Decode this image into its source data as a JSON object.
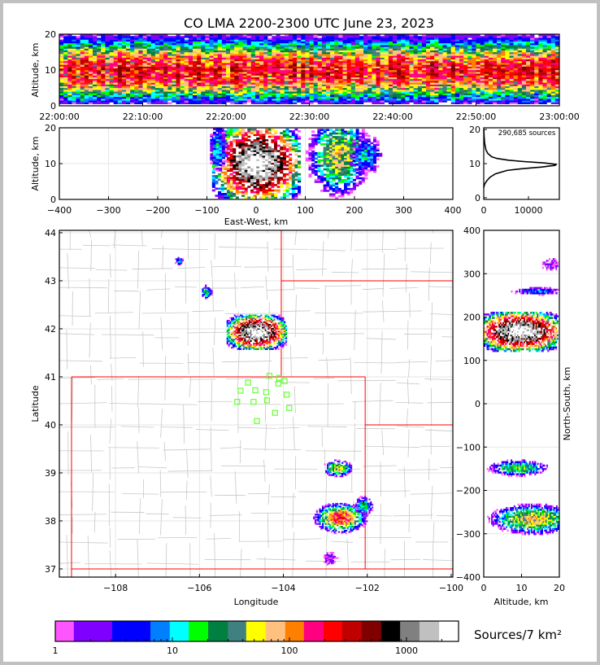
{
  "chart_data": {
    "type": "heatmap",
    "title": "CO LMA 2200-2300 UTC June 23, 2023",
    "source_count_label": "290,685 sources",
    "colorbar": {
      "label": "Sources/7 km²",
      "scale": "log",
      "tick_labels": [
        "1",
        "10",
        "100",
        "1000"
      ],
      "tick_values": [
        1,
        10,
        100,
        1000
      ],
      "bin_edges": [
        1,
        1.44,
        3.06,
        6.5,
        9.5,
        13.8,
        20.2,
        29.8,
        42.7,
        62.7,
        92,
        133,
        195,
        282,
        414,
        608,
        882,
        1290,
        1900,
        2780
      ],
      "colors": [
        "#ff55ff",
        "#8000ff",
        "#0000ff",
        "#0080ff",
        "#00ffff",
        "#00ff00",
        "#008040",
        "#408080",
        "#ffff00",
        "#ffc080",
        "#ff8000",
        "#ff0080",
        "#ff0000",
        "#c00000",
        "#800000",
        "#000000",
        "#808080",
        "#c0c0c0",
        "#ffffff"
      ]
    },
    "panels": {
      "time_height": {
        "ylabel": "Altitude, km",
        "ylim": [
          0,
          20
        ],
        "yticks": [
          0,
          10,
          20
        ],
        "xlim_minutes": [
          0,
          60
        ],
        "xtick_labels": [
          "22:00:00",
          "22:10:00",
          "22:20:00",
          "22:30:00",
          "22:40:00",
          "22:50:00",
          "23:00:00"
        ],
        "xtick_minutes": [
          0,
          10,
          20,
          30,
          40,
          50,
          60
        ],
        "profile": {
          "center_alt_km": 9.5,
          "spread_km": 3.0,
          "peak_density": 220
        }
      },
      "ew_height": {
        "xlabel": "East-West, km",
        "ylabel": "Altitude, km",
        "xlim": [
          -400,
          400
        ],
        "ylim": [
          0,
          20
        ],
        "xticks": [
          -400,
          -300,
          -200,
          -100,
          0,
          100,
          200,
          300,
          400
        ],
        "yticks": [
          0,
          10,
          20
        ],
        "clusters": [
          {
            "x": 0,
            "y": 10,
            "sx": 28,
            "sy": 3.5,
            "peak": 2600
          },
          {
            "x": -80,
            "y": 14,
            "sx": 8,
            "sy": 3,
            "peak": 12
          },
          {
            "x": 165,
            "y": 12,
            "sx": 22,
            "sy": 4,
            "peak": 60
          },
          {
            "x": 220,
            "y": 12,
            "sx": 15,
            "sy": 2.5,
            "peak": 10
          }
        ]
      },
      "altitude_histogram": {
        "xlim": [
          0,
          16900
        ],
        "ylim": [
          -0.5,
          20.5
        ],
        "xticks": [
          0,
          10000
        ],
        "yticks": [
          0,
          10,
          20
        ],
        "altitude_km": [
          3,
          4,
          5,
          6,
          7,
          8,
          8.5,
          9,
          9.5,
          9.8,
          10.2,
          10.6,
          11,
          11.5,
          12,
          13,
          14,
          16,
          18,
          20
        ],
        "counts": [
          0,
          200,
          700,
          1400,
          2600,
          5200,
          8500,
          13000,
          16000,
          16200,
          13500,
          9000,
          5500,
          3000,
          1800,
          900,
          500,
          200,
          80,
          20
        ]
      },
      "plan_view": {
        "xlabel": "Longitude",
        "ylabel": "Latitude",
        "xlim": [
          -109.34,
          -99.96
        ],
        "ylim": [
          36.83,
          44.05
        ],
        "xticks": [
          -108,
          -106,
          -104,
          -102,
          -100
        ],
        "yticks": [
          37,
          38,
          39,
          40,
          41,
          42,
          43,
          44
        ],
        "clusters": [
          {
            "x": -104.65,
            "y": 41.92,
            "sx": 0.22,
            "sy": 0.11,
            "peak": 2600
          },
          {
            "x": -102.65,
            "y": 38.05,
            "sx": 0.2,
            "sy": 0.1,
            "peak": 180
          },
          {
            "x": -102.72,
            "y": 39.08,
            "sx": 0.12,
            "sy": 0.06,
            "peak": 60
          },
          {
            "x": -102.1,
            "y": 38.3,
            "sx": 0.09,
            "sy": 0.08,
            "peak": 18
          },
          {
            "x": -105.85,
            "y": 42.75,
            "sx": 0.05,
            "sy": 0.06,
            "peak": 20
          },
          {
            "x": -106.5,
            "y": 43.4,
            "sx": 0.05,
            "sy": 0.04,
            "peak": 8
          },
          {
            "x": -102.9,
            "y": 37.2,
            "sx": 0.12,
            "sy": 0.1,
            "peak": 2
          }
        ],
        "stations": [
          [
            -104.33,
            41.02
          ],
          [
            -104.1,
            40.98
          ],
          [
            -103.97,
            40.91
          ],
          [
            -104.84,
            40.88
          ],
          [
            -104.12,
            40.86
          ],
          [
            -105.02,
            40.71
          ],
          [
            -104.67,
            40.72
          ],
          [
            -104.41,
            40.68
          ],
          [
            -103.92,
            40.63
          ],
          [
            -105.1,
            40.48
          ],
          [
            -104.71,
            40.48
          ],
          [
            -104.39,
            40.51
          ],
          [
            -103.86,
            40.35
          ],
          [
            -104.2,
            40.25
          ],
          [
            -104.63,
            40.08
          ]
        ]
      },
      "ns_height": {
        "xlabel": "Altitude, km",
        "ylabel": "North-South, km",
        "xlim": [
          0,
          20
        ],
        "ylim": [
          -400,
          400
        ],
        "xticks": [
          0,
          10,
          20
        ],
        "yticks": [
          -400,
          -300,
          -200,
          -100,
          0,
          100,
          200,
          300,
          400
        ],
        "clusters": [
          {
            "x": 9.5,
            "y": 165,
            "sx": 3.5,
            "sy": 14,
            "peak": 2600
          },
          {
            "x": 14,
            "y": 258,
            "sx": 3,
            "sy": 4,
            "peak": 8
          },
          {
            "x": 9,
            "y": -150,
            "sx": 3,
            "sy": 7,
            "peak": 30
          },
          {
            "x": 13,
            "y": -268,
            "sx": 4,
            "sy": 12,
            "peak": 70
          },
          {
            "x": 18,
            "y": 320,
            "sx": 2,
            "sy": 10,
            "peak": 2
          }
        ]
      }
    }
  }
}
